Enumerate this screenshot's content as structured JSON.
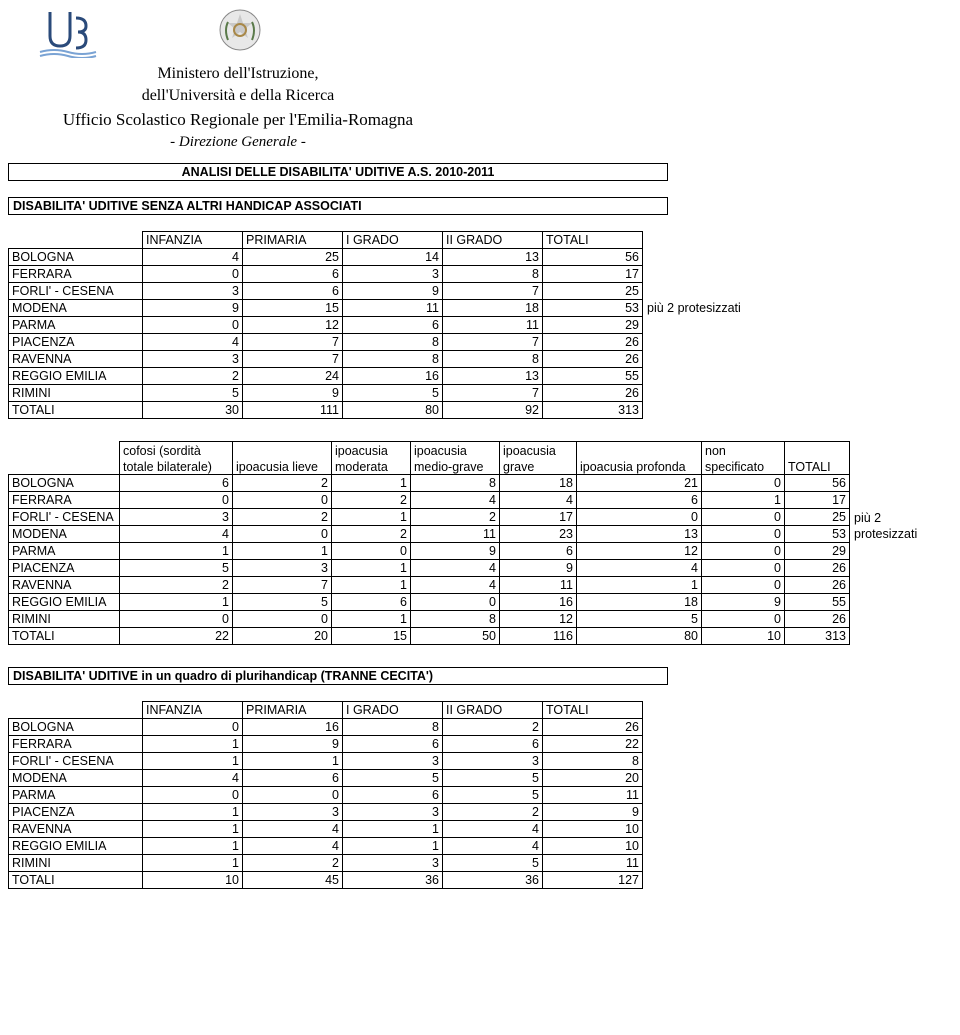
{
  "header": {
    "line1": "Ministero dell'Istruzione,",
    "line2": "dell'Università e della Ricerca",
    "line3": "Ufficio Scolastico Regionale per l'Emilia-Romagna",
    "line4": "- Direzione Generale -"
  },
  "main_title": "ANALISI DELLE DISABILITA' UDITIVE A.S. 2010-2011",
  "section1_title": "DISABILITA' UDITIVE SENZA ALTRI HANDICAP ASSOCIATI",
  "section2_title": "DISABILITA' UDITIVE in un quadro di plurihandicap (TRANNE CECITA')",
  "city_labels": [
    "BOLOGNA",
    "FERRARA",
    "FORLI' - CESENA",
    "MODENA",
    "PARMA",
    "PIACENZA",
    "RAVENNA",
    "REGGIO EMILIA",
    "RIMINI",
    "TOTALI"
  ],
  "table1": {
    "headers": [
      "INFANZIA",
      "PRIMARIA",
      "I GRADO",
      "II GRADO",
      "TOTALI"
    ],
    "rows": [
      [
        4,
        25,
        14,
        13,
        56
      ],
      [
        0,
        6,
        3,
        8,
        17
      ],
      [
        3,
        6,
        9,
        7,
        25
      ],
      [
        9,
        15,
        11,
        18,
        53
      ],
      [
        0,
        12,
        6,
        11,
        29
      ],
      [
        4,
        7,
        8,
        7,
        26
      ],
      [
        3,
        7,
        8,
        8,
        26
      ],
      [
        2,
        24,
        16,
        13,
        55
      ],
      [
        5,
        9,
        5,
        7,
        26
      ],
      [
        30,
        111,
        80,
        92,
        313
      ]
    ],
    "side_note_row": 3,
    "side_note": "più 2 protesizzati"
  },
  "table2": {
    "headers": [
      "cofosi (sordità totale bilaterale)",
      "ipoacusia lieve",
      "ipoacusia moderata",
      "ipoacusia medio-grave",
      "ipoacusia grave",
      "ipoacusia profonda",
      "non specificato",
      "TOTALI"
    ],
    "rows": [
      [
        6,
        2,
        1,
        8,
        18,
        21,
        0,
        56
      ],
      [
        0,
        0,
        2,
        4,
        4,
        6,
        1,
        17
      ],
      [
        3,
        2,
        1,
        2,
        17,
        0,
        0,
        25
      ],
      [
        4,
        0,
        2,
        11,
        23,
        13,
        0,
        53
      ],
      [
        1,
        1,
        0,
        9,
        6,
        12,
        0,
        29
      ],
      [
        5,
        3,
        1,
        4,
        9,
        4,
        0,
        26
      ],
      [
        2,
        7,
        1,
        4,
        11,
        1,
        0,
        26
      ],
      [
        1,
        5,
        6,
        0,
        16,
        18,
        9,
        55
      ],
      [
        0,
        0,
        1,
        8,
        12,
        5,
        0,
        26
      ],
      [
        22,
        20,
        15,
        50,
        116,
        80,
        10,
        313
      ]
    ],
    "side_note_row": 3,
    "side_note1": "più 2",
    "side_note2": "protesizzati"
  },
  "table3": {
    "headers": [
      "INFANZIA",
      "PRIMARIA",
      "I GRADO",
      "II GRADO",
      "TOTALI"
    ],
    "rows": [
      [
        0,
        16,
        8,
        2,
        26
      ],
      [
        1,
        9,
        6,
        6,
        22
      ],
      [
        1,
        1,
        3,
        3,
        8
      ],
      [
        4,
        6,
        5,
        5,
        20
      ],
      [
        0,
        0,
        6,
        5,
        11
      ],
      [
        1,
        3,
        3,
        2,
        9
      ],
      [
        1,
        4,
        1,
        4,
        10
      ],
      [
        1,
        4,
        1,
        4,
        10
      ],
      [
        1,
        2,
        3,
        5,
        11
      ],
      [
        10,
        45,
        36,
        36,
        127
      ]
    ]
  }
}
